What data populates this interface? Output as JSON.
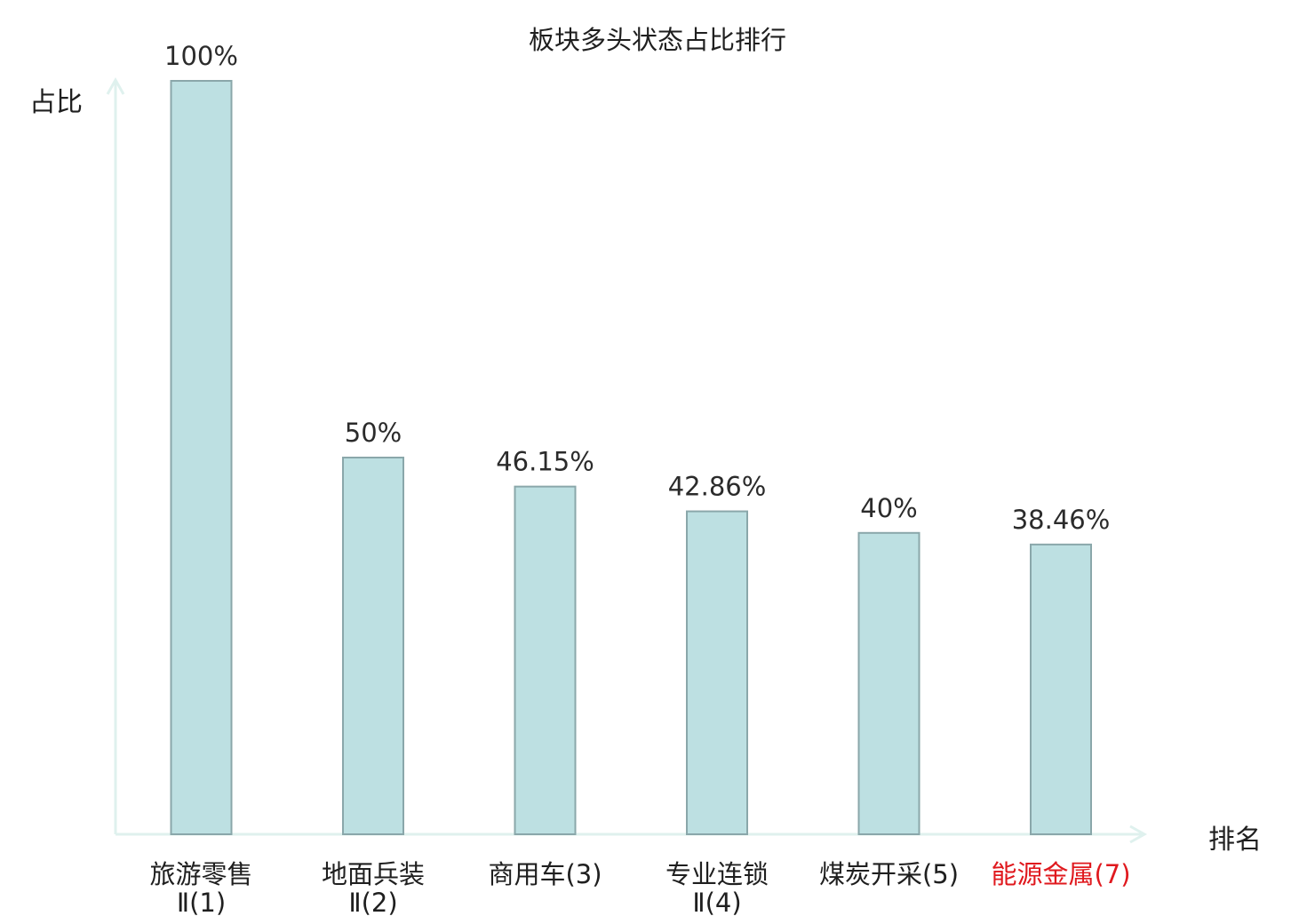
{
  "chart_data": {
    "type": "bar",
    "title": "板块多头状态占比排行",
    "ylabel": "占比",
    "xlabel": "排名",
    "categories": [
      {
        "line1": "旅游零售",
        "line2": "Ⅱ(1)",
        "highlight": false
      },
      {
        "line1": "地面兵装",
        "line2": "Ⅱ(2)",
        "highlight": false
      },
      {
        "line1": "商用车(3)",
        "line2": "",
        "highlight": false
      },
      {
        "line1": "专业连锁",
        "line2": "Ⅱ(4)",
        "highlight": false
      },
      {
        "line1": "煤炭开采(5)",
        "line2": "",
        "highlight": false
      },
      {
        "line1": "能源金属(7)",
        "line2": "",
        "highlight": true
      }
    ],
    "values": [
      100,
      50,
      46.15,
      42.86,
      40,
      38.46
    ],
    "value_labels": [
      "100%",
      "50%",
      "46.15%",
      "42.86%",
      "40%",
      "38.46%"
    ],
    "ylim": [
      0,
      100
    ],
    "grid": false,
    "colors": {
      "bar_fill": "#bde0e2",
      "bar_stroke": "#8aa7aa",
      "axis": "#dff1ee",
      "highlight_text": "#e0191e",
      "text": "#1f1f1f"
    }
  }
}
